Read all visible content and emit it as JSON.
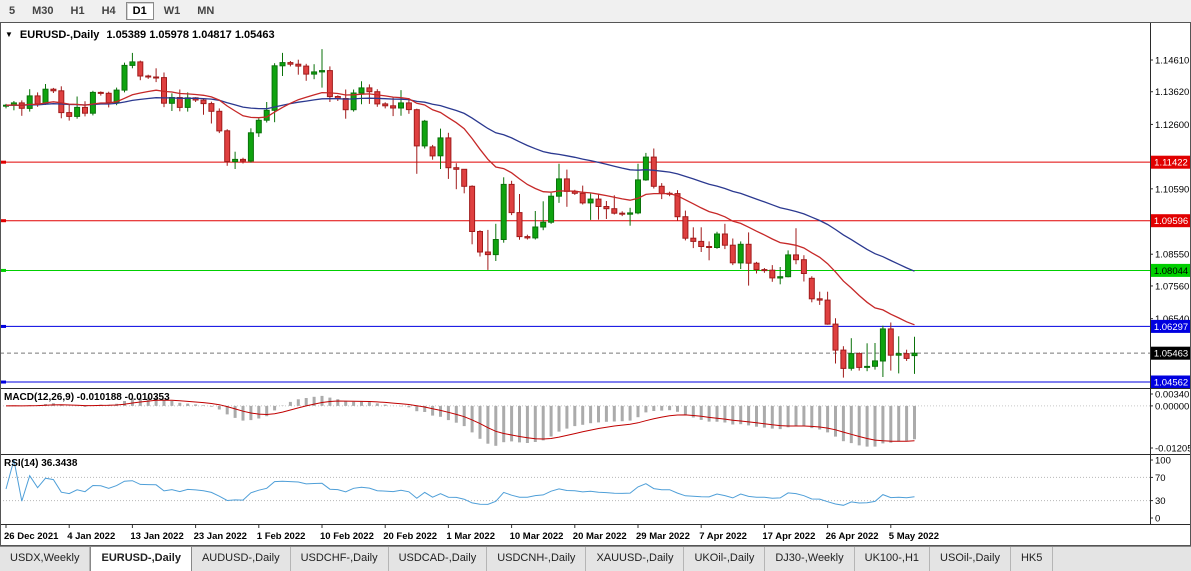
{
  "toolbar": {
    "timeframes": [
      {
        "label": "5",
        "active": false
      },
      {
        "label": "M30",
        "active": false
      },
      {
        "label": "H1",
        "active": false
      },
      {
        "label": "H4",
        "active": false
      },
      {
        "label": "D1",
        "active": true
      },
      {
        "label": "W1",
        "active": false
      },
      {
        "label": "MN",
        "active": false
      }
    ]
  },
  "chart": {
    "header": {
      "icon": "▼",
      "symbol": "EURUSD-,Daily",
      "ohlc": "1.05389 1.05978 1.04817 1.05463"
    }
  },
  "chart_data": {
    "type": "candlestick",
    "symbol": "EURUSD",
    "period": "Daily",
    "ohlc_current": {
      "open": 1.05389,
      "high": 1.05978,
      "low": 1.04817,
      "close": 1.05463
    },
    "price_axis": [
      "1.14610",
      "1.13620",
      "1.12600",
      "1.10590",
      "1.08550",
      "1.07560",
      "1.06540"
    ],
    "hlines": [
      {
        "value": 1.11422,
        "label": "1.11422",
        "color": "#e10000",
        "text_color": "#ffffff"
      },
      {
        "value": 1.09596,
        "label": "1.09596",
        "color": "#e10000",
        "text_color": "#ffffff"
      },
      {
        "value": 1.08044,
        "label": "1.08044",
        "color": "#00cf00",
        "text_color": "#000000"
      },
      {
        "value": 1.06297,
        "label": "1.06297",
        "color": "#0000e0",
        "text_color": "#ffffff"
      },
      {
        "value": 1.04562,
        "label": "1.04562",
        "color": "#0000e0",
        "text_color": "#ffffff"
      }
    ],
    "current_price": {
      "value": 1.05463,
      "label": "1.05463",
      "badge_color": "#000000",
      "text_color": "#ffffff"
    },
    "moving_averages": [
      {
        "name": "fast-ma",
        "period": 20,
        "color": "#c62828"
      },
      {
        "name": "slow-ma",
        "period": 50,
        "color": "#2b3990"
      }
    ],
    "x_labels": [
      {
        "index": 0,
        "text": "26 Dec 2021"
      },
      {
        "index": 8,
        "text": "4 Jan 2022"
      },
      {
        "index": 16,
        "text": "13 Jan 2022"
      },
      {
        "index": 24,
        "text": "23 Jan 2022"
      },
      {
        "index": 32,
        "text": "1 Feb 2022"
      },
      {
        "index": 40,
        "text": "10 Feb 2022"
      },
      {
        "index": 48,
        "text": "20 Feb 2022"
      },
      {
        "index": 56,
        "text": "1 Mar 2022"
      },
      {
        "index": 64,
        "text": "10 Mar 2022"
      },
      {
        "index": 72,
        "text": "20 Mar 2022"
      },
      {
        "index": 80,
        "text": "29 Mar 2022"
      },
      {
        "index": 88,
        "text": "7 Apr 2022"
      },
      {
        "index": 96,
        "text": "17 Apr 2022"
      },
      {
        "index": 104,
        "text": "26 Apr 2022"
      },
      {
        "index": 112,
        "text": "5 May 2022"
      }
    ],
    "candles": [
      [
        1.1318,
        1.1324,
        1.131,
        1.132
      ],
      [
        1.132,
        1.1333,
        1.1304,
        1.1327
      ],
      [
        1.1327,
        1.1335,
        1.1287,
        1.131
      ],
      [
        1.131,
        1.137,
        1.13,
        1.1349
      ],
      [
        1.1349,
        1.136,
        1.1315,
        1.1324
      ],
      [
        1.1324,
        1.1386,
        1.1321,
        1.137
      ],
      [
        1.137,
        1.1374,
        1.1358,
        1.1365
      ],
      [
        1.1365,
        1.1379,
        1.1279,
        1.1297
      ],
      [
        1.1297,
        1.1323,
        1.1272,
        1.1285
      ],
      [
        1.1285,
        1.1347,
        1.1278,
        1.1313
      ],
      [
        1.1313,
        1.1332,
        1.1285,
        1.1295
      ],
      [
        1.1295,
        1.1365,
        1.1288,
        1.136
      ],
      [
        1.136,
        1.1363,
        1.135,
        1.1357
      ],
      [
        1.1357,
        1.1362,
        1.1313,
        1.1328
      ],
      [
        1.1328,
        1.1375,
        1.132,
        1.1367
      ],
      [
        1.1367,
        1.1453,
        1.136,
        1.1444
      ],
      [
        1.1444,
        1.1483,
        1.1435,
        1.1455
      ],
      [
        1.1455,
        1.1459,
        1.1398,
        1.1411
      ],
      [
        1.1411,
        1.1415,
        1.1402,
        1.1408
      ],
      [
        1.1408,
        1.1435,
        1.1392,
        1.1406
      ],
      [
        1.1406,
        1.1422,
        1.1314,
        1.1326
      ],
      [
        1.1326,
        1.1357,
        1.1302,
        1.1344
      ],
      [
        1.1344,
        1.1369,
        1.1301,
        1.1313
      ],
      [
        1.1313,
        1.136,
        1.13,
        1.1343
      ],
      [
        1.1343,
        1.1345,
        1.133,
        1.1336
      ],
      [
        1.1336,
        1.134,
        1.129,
        1.1325
      ],
      [
        1.1325,
        1.1331,
        1.1263,
        1.1301
      ],
      [
        1.1301,
        1.131,
        1.1233,
        1.124
      ],
      [
        1.124,
        1.1245,
        1.1131,
        1.1144
      ],
      [
        1.1144,
        1.1175,
        1.1121,
        1.1151
      ],
      [
        1.1151,
        1.1156,
        1.1138,
        1.1146
      ],
      [
        1.1146,
        1.1248,
        1.1141,
        1.1234
      ],
      [
        1.1234,
        1.1279,
        1.1221,
        1.1273
      ],
      [
        1.1273,
        1.133,
        1.1266,
        1.1304
      ],
      [
        1.1304,
        1.1451,
        1.1267,
        1.1443
      ],
      [
        1.1443,
        1.1483,
        1.1411,
        1.1453
      ],
      [
        1.1453,
        1.1458,
        1.1441,
        1.1448
      ],
      [
        1.1448,
        1.1462,
        1.1415,
        1.1442
      ],
      [
        1.1442,
        1.1449,
        1.1396,
        1.1417
      ],
      [
        1.1417,
        1.1448,
        1.1401,
        1.1424
      ],
      [
        1.1424,
        1.1495,
        1.1375,
        1.1428
      ],
      [
        1.1428,
        1.1441,
        1.133,
        1.1347
      ],
      [
        1.1347,
        1.1351,
        1.1333,
        1.1341
      ],
      [
        1.1341,
        1.1369,
        1.1278,
        1.1306
      ],
      [
        1.1306,
        1.1369,
        1.13,
        1.1358
      ],
      [
        1.1358,
        1.1395,
        1.1323,
        1.1374
      ],
      [
        1.1374,
        1.1385,
        1.1324,
        1.1362
      ],
      [
        1.1362,
        1.137,
        1.1315,
        1.1324
      ],
      [
        1.1324,
        1.1329,
        1.131,
        1.1318
      ],
      [
        1.1318,
        1.1345,
        1.1286,
        1.1311
      ],
      [
        1.1311,
        1.1367,
        1.1287,
        1.1327
      ],
      [
        1.1327,
        1.1342,
        1.1293,
        1.1306
      ],
      [
        1.1306,
        1.1309,
        1.1106,
        1.1193
      ],
      [
        1.1193,
        1.1274,
        1.1185,
        1.127
      ],
      [
        1.119,
        1.1196,
        1.115,
        1.1162
      ],
      [
        1.1162,
        1.1247,
        1.1121,
        1.1218
      ],
      [
        1.1218,
        1.1234,
        1.109,
        1.1125
      ],
      [
        1.1125,
        1.1139,
        1.1058,
        1.112
      ],
      [
        1.112,
        1.1121,
        1.1045,
        1.1067
      ],
      [
        1.1067,
        1.107,
        1.0886,
        1.0926
      ],
      [
        1.0926,
        1.093,
        1.0848,
        1.0862
      ],
      [
        1.0862,
        1.0931,
        1.0806,
        1.0854
      ],
      [
        1.0854,
        1.095,
        1.0834,
        1.0901
      ],
      [
        1.0901,
        1.1095,
        1.0891,
        1.1073
      ],
      [
        1.1073,
        1.1084,
        1.0977,
        1.0985
      ],
      [
        1.0985,
        1.1043,
        1.09,
        1.091
      ],
      [
        1.091,
        1.0916,
        1.0901,
        1.0906
      ],
      [
        1.0906,
        1.099,
        1.0901,
        1.094
      ],
      [
        1.094,
        1.102,
        1.093,
        1.0955
      ],
      [
        1.0955,
        1.1046,
        1.095,
        1.1036
      ],
      [
        1.1036,
        1.1137,
        1.1015,
        1.109
      ],
      [
        1.109,
        1.1119,
        1.1003,
        1.1051
      ],
      [
        1.1051,
        1.1056,
        1.104,
        1.1045
      ],
      [
        1.1045,
        1.1069,
        1.101,
        1.1015
      ],
      [
        1.1015,
        1.1044,
        1.0962,
        1.1027
      ],
      [
        1.1027,
        1.1044,
        1.0963,
        1.1004
      ],
      [
        1.1004,
        1.1021,
        1.0965,
        1.0997
      ],
      [
        1.0997,
        1.1039,
        1.0979,
        1.0983
      ],
      [
        1.0983,
        1.0989,
        1.0974,
        1.098
      ],
      [
        1.098,
        1.1,
        1.0944,
        1.0984
      ],
      [
        1.0984,
        1.1137,
        1.098,
        1.1087
      ],
      [
        1.1087,
        1.1171,
        1.1084,
        1.1158
      ],
      [
        1.1158,
        1.1185,
        1.106,
        1.1067
      ],
      [
        1.1067,
        1.1077,
        1.1027,
        1.1045
      ],
      [
        1.1045,
        1.105,
        1.1036,
        1.1044
      ],
      [
        1.1044,
        1.1055,
        1.096,
        1.0972
      ],
      [
        1.0972,
        1.0991,
        1.0898,
        1.0905
      ],
      [
        1.0905,
        1.0939,
        1.0874,
        1.0895
      ],
      [
        1.0895,
        1.0939,
        1.0862,
        1.0879
      ],
      [
        1.0879,
        1.0895,
        1.0836,
        1.0876
      ],
      [
        1.0876,
        1.0925,
        1.0872,
        1.0918
      ],
      [
        1.0918,
        1.095,
        1.0871,
        1.0883
      ],
      [
        1.0883,
        1.0904,
        1.0821,
        1.0828
      ],
      [
        1.0828,
        1.0895,
        1.0809,
        1.0886
      ],
      [
        1.0886,
        1.0923,
        1.0757,
        1.0827
      ],
      [
        1.0827,
        1.0831,
        1.0795,
        1.0807
      ],
      [
        1.0807,
        1.0812,
        1.0797,
        1.0805
      ],
      [
        1.0805,
        1.0821,
        1.0769,
        1.0781
      ],
      [
        1.0781,
        1.0815,
        1.0761,
        1.0785
      ],
      [
        1.0785,
        1.0867,
        1.0783,
        1.0853
      ],
      [
        1.0853,
        1.0936,
        1.0824,
        1.0838
      ],
      [
        1.0838,
        1.0852,
        1.077,
        1.0795
      ],
      [
        1.078,
        1.0786,
        1.0705,
        1.0716
      ],
      [
        1.0716,
        1.0738,
        1.0697,
        1.0712
      ],
      [
        1.0712,
        1.0738,
        1.0635,
        1.0637
      ],
      [
        1.0637,
        1.0655,
        1.0514,
        1.0556
      ],
      [
        1.0556,
        1.0568,
        1.047,
        1.0499
      ],
      [
        1.0499,
        1.0593,
        1.0492,
        1.0545
      ],
      [
        1.0545,
        1.0549,
        1.0492,
        1.0502
      ],
      [
        1.0502,
        1.0577,
        1.049,
        1.0505
      ],
      [
        1.0505,
        1.0578,
        1.0495,
        1.0522
      ],
      [
        1.0522,
        1.0632,
        1.0472,
        1.0622
      ],
      [
        1.0622,
        1.0642,
        1.0492,
        1.054
      ],
      [
        1.054,
        1.0599,
        1.0483,
        1.0545
      ],
      [
        1.0545,
        1.0557,
        1.0522,
        1.053
      ],
      [
        1.05389,
        1.05978,
        1.04817,
        1.05463
      ]
    ],
    "indicators": {
      "macd": {
        "label": "MACD(12,26,9) -0.010188 -0.010353",
        "params": [
          12,
          26,
          9
        ],
        "values": {
          "main": -0.010188,
          "signal": -0.010353
        },
        "axis": [
          {
            "text": "0.00340",
            "value": 0.0034
          },
          {
            "text": "0.00000",
            "value": 0
          },
          {
            "text": "-0.01205",
            "value": -0.01205
          }
        ],
        "histogram_color": "#ababab",
        "signal_color": "#c00000"
      },
      "rsi": {
        "label": "RSI(14) 36.3438",
        "period": 14,
        "value": 36.3438,
        "axis": [
          {
            "text": "100",
            "value": 100
          },
          {
            "text": "70",
            "value": 70
          },
          {
            "text": "30",
            "value": 30
          },
          {
            "text": "0",
            "value": 0
          }
        ],
        "levels": [
          70,
          30
        ],
        "line_color": "#4f9fd8"
      }
    },
    "candle_colors": {
      "up_fill": "#0fa30f",
      "up_stroke": "#0a720a",
      "down_fill": "#df4040",
      "down_stroke": "#a11b1b"
    }
  },
  "tabs": [
    {
      "label": "USDX,Weekly",
      "active": false
    },
    {
      "label": "EURUSD-,Daily",
      "active": true
    },
    {
      "label": "AUDUSD-,Daily",
      "active": false
    },
    {
      "label": "USDCHF-,Daily",
      "active": false
    },
    {
      "label": "USDCAD-,Daily",
      "active": false
    },
    {
      "label": "USDCNH-,Daily",
      "active": false
    },
    {
      "label": "XAUUSD-,Daily",
      "active": false
    },
    {
      "label": "UKOil-,Daily",
      "active": false
    },
    {
      "label": "DJ30-,Weekly",
      "active": false
    },
    {
      "label": "UK100-,H1",
      "active": false
    },
    {
      "label": "USOil-,Daily",
      "active": false
    },
    {
      "label": "HK5",
      "active": false
    }
  ]
}
